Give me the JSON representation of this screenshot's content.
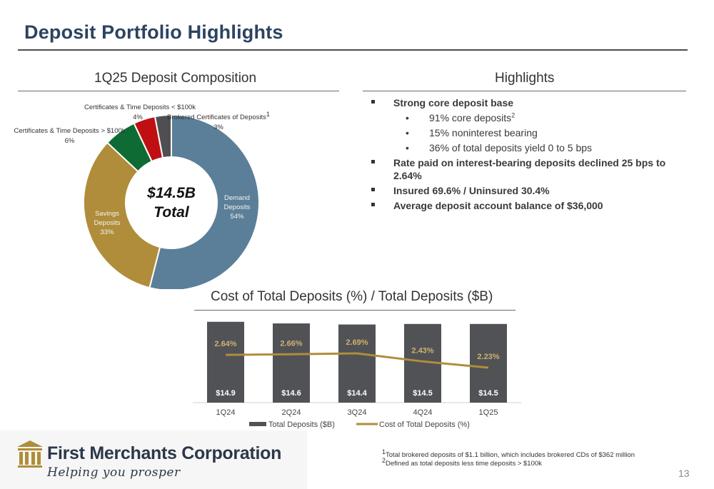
{
  "title": "Deposit Portfolio Highlights",
  "composition": {
    "heading": "1Q25 Deposit Composition",
    "center_value": "$14.5B",
    "center_label": "Total",
    "slices": [
      {
        "name_lines": [
          "Demand",
          "Deposits"
        ],
        "pct_label": "54%",
        "value": 54,
        "color": "#5b7f99"
      },
      {
        "name_lines": [
          "Savings",
          "Deposits"
        ],
        "pct_label": "33%",
        "value": 33,
        "color": "#b08d3a"
      },
      {
        "name_lines": [
          "Certificates & Time Deposits > $100k"
        ],
        "pct_label": "6%",
        "value": 6,
        "color": "#0e6b34"
      },
      {
        "name_lines": [
          "Certificates & Time Deposits < $100k"
        ],
        "pct_label": "4%",
        "value": 4,
        "color": "#c00f12"
      },
      {
        "name_lines": [
          "Brokered Certificates of Deposits"
        ],
        "name_sup": "1",
        "pct_label": "3%",
        "value": 3,
        "color": "#4f4f51"
      }
    ]
  },
  "highlights": {
    "heading": "Highlights",
    "items": [
      {
        "text": "Strong core deposit base"
      },
      {
        "text": "91% core deposits",
        "sup": "2"
      },
      {
        "text": "15% noninterest bearing"
      },
      {
        "text": "36% of total deposits yield 0 to 5 bps"
      },
      {
        "text": "Rate paid on interest-bearing deposits declined 25 bps to 2.64%"
      },
      {
        "text": "Insured 69.6% / Uninsured 30.4%"
      },
      {
        "text": "Average deposit account balance of $36,000"
      }
    ],
    "bullet_glyph": "▪",
    "sub_bullet_glyph": "•"
  },
  "chart_data": {
    "type": "bar",
    "title": "Cost of Total Deposits (%) / Total Deposits ($B)",
    "categories": [
      "1Q24",
      "2Q24",
      "3Q24",
      "4Q24",
      "1Q25"
    ],
    "series": [
      {
        "name": "Total Deposits ($B)",
        "kind": "bar",
        "values": [
          14.9,
          14.6,
          14.4,
          14.5,
          14.5
        ],
        "labels": [
          "$14.9",
          "$14.6",
          "$14.4",
          "$14.5",
          "$14.5"
        ],
        "color": "#505256"
      },
      {
        "name": "Cost of Total Deposits (%)",
        "kind": "line",
        "values": [
          2.64,
          2.66,
          2.69,
          2.43,
          2.23
        ],
        "labels": [
          "2.64%",
          "2.66%",
          "2.69%",
          "2.43%",
          "2.23%"
        ],
        "color": "#b08d3a"
      }
    ],
    "legend_position": "bottom",
    "grid": false
  },
  "footer": {
    "company": "First Merchants Corporation",
    "tagline": "Helping you prosper",
    "footnote1_sup": "1",
    "footnote1": "Total brokered deposits of $1.1 billion, which includes brokered CDs of $362 million",
    "footnote2_sup": "2",
    "footnote2": "Defined as total deposits less time deposits > $100k",
    "page_number": "13"
  }
}
